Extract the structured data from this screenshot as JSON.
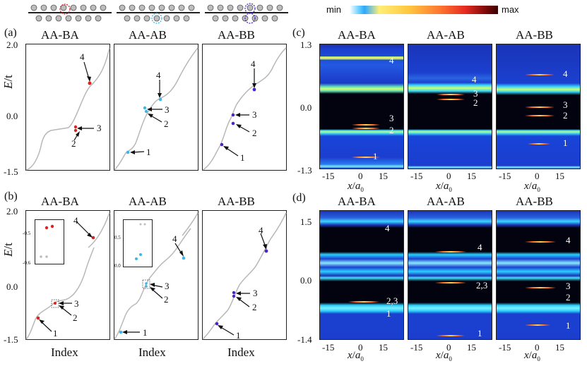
{
  "colorbar": {
    "min": "min",
    "max": "max"
  },
  "panels": {
    "a": "(a)",
    "b": "(b)",
    "c": "(c)",
    "d": "(d)"
  },
  "titles": [
    "AA-BA",
    "AA-AB",
    "AA-BB"
  ],
  "left_axis": {
    "ylabel_E": "E",
    "ylabel_t": "/t",
    "a_ticks": [
      "2.0",
      "0.0",
      "-1.5"
    ],
    "b_ticks": [
      "2.0",
      "0.0",
      "-1.5"
    ],
    "xlabel": "Index"
  },
  "inset": {
    "ba_ticks": [
      "-0.5",
      "-0.6"
    ],
    "ab_ticks": [
      "0.5",
      "0.0"
    ]
  },
  "right_axis": {
    "c_ticks": [
      "1.3",
      "0.0",
      "-1.3"
    ],
    "d_ticks": [
      "1.5",
      "0.0",
      "-1.4"
    ],
    "x_ticks": [
      "-15",
      "0",
      "15"
    ],
    "xlabel_x": "x",
    "xlabel_a": "a",
    "xlabel_sub": "0"
  },
  "arrow_labels": {
    "a_ba": [
      "4",
      "3",
      "2"
    ],
    "a_ab": [
      "4",
      "3",
      "2",
      "1"
    ],
    "a_bb": [
      "4",
      "3",
      "2",
      "1"
    ],
    "b_ba": [
      "4",
      "3",
      "2",
      "1"
    ],
    "b_ab": [
      "4",
      "3",
      "2",
      "1"
    ],
    "b_bb": [
      "4",
      "3",
      "2",
      "1"
    ]
  },
  "map_labels": {
    "c_ba": [
      "4",
      "3",
      "2",
      "1"
    ],
    "c_ab": [
      "4",
      "3",
      "2"
    ],
    "c_bb": [
      "4",
      "3",
      "2",
      "1"
    ],
    "d_ba": [
      "4",
      "2,3",
      "1"
    ],
    "d_ab": [
      "4",
      "2,3",
      "1"
    ],
    "d_bb": [
      "4",
      "3",
      "2",
      "1"
    ]
  },
  "colors": {
    "red": "#e02020",
    "cyan": "#3fb6e8",
    "purple": "#4b23c8",
    "curve": "#b8b8b8"
  }
}
